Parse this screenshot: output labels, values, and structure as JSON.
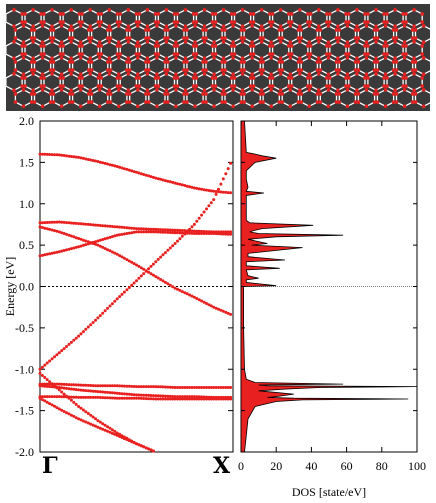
{
  "figure": {
    "structure_image": {
      "description_icon": "nanotube-structure-icon",
      "background_color": "#3a3a3a",
      "bond_color": "#ffffff",
      "atom_color": "#e8201f"
    }
  },
  "chart_data": [
    {
      "type": "scatter",
      "name": "band-structure",
      "ylabel": "Energy [eV]",
      "xlabel": "",
      "ylim": [
        -2.0,
        2.0
      ],
      "yticks": [
        "2.0",
        "1.5",
        "1.0",
        "0.5",
        "0.0",
        "-0.5",
        "-1.0",
        "-1.5",
        "-2.0"
      ],
      "xticks": [
        "Γ",
        "X"
      ],
      "fermi_level": 0.0,
      "marker_color": "#e8201f",
      "bands": [
        {
          "x": [
            0,
            0.1,
            0.2,
            0.3,
            0.4,
            0.5,
            0.6,
            0.7,
            0.8,
            0.9,
            1.0
          ],
          "y": [
            1.6,
            1.59,
            1.56,
            1.51,
            1.45,
            1.38,
            1.31,
            1.25,
            1.19,
            1.15,
            1.13
          ]
        },
        {
          "x": [
            0,
            0.1,
            0.2,
            0.3,
            0.4,
            0.5,
            0.6,
            0.7,
            0.8,
            0.9,
            1.0
          ],
          "y": [
            -1.0,
            -0.8,
            -0.6,
            -0.38,
            -0.15,
            0.07,
            0.3,
            0.52,
            0.75,
            1.05,
            1.55
          ]
        },
        {
          "x": [
            0,
            0.1,
            0.2,
            0.3,
            0.4,
            0.5,
            0.6,
            0.7,
            0.8,
            0.9,
            1.0
          ],
          "y": [
            0.77,
            0.78,
            0.76,
            0.74,
            0.72,
            0.7,
            0.69,
            0.68,
            0.67,
            0.66,
            0.66
          ]
        },
        {
          "x": [
            0,
            0.1,
            0.2,
            0.3,
            0.4,
            0.5,
            0.6,
            0.7,
            0.8,
            0.9,
            1.0
          ],
          "y": [
            0.72,
            0.66,
            0.58,
            0.5,
            0.39,
            0.26,
            0.12,
            -0.02,
            -0.13,
            -0.25,
            -0.35
          ]
        },
        {
          "x": [
            0,
            0.1,
            0.2,
            0.3,
            0.4,
            0.5,
            0.6,
            0.7,
            0.8,
            0.9,
            1.0
          ],
          "y": [
            0.37,
            0.42,
            0.48,
            0.55,
            0.62,
            0.66,
            0.66,
            0.65,
            0.64,
            0.64,
            0.63
          ]
        },
        {
          "x": [
            0,
            0.1,
            0.2,
            0.3,
            0.4,
            0.5,
            0.6,
            0.7,
            0.8,
            0.9,
            1.0
          ],
          "y": [
            -1.18,
            -1.18,
            -1.19,
            -1.2,
            -1.2,
            -1.21,
            -1.21,
            -1.22,
            -1.22,
            -1.22,
            -1.22
          ]
        },
        {
          "x": [
            0,
            0.1,
            0.2,
            0.3,
            0.4,
            0.5,
            0.6,
            0.7,
            0.8,
            0.9,
            1.0
          ],
          "y": [
            -1.2,
            -1.22,
            -1.25,
            -1.27,
            -1.29,
            -1.31,
            -1.32,
            -1.33,
            -1.33,
            -1.34,
            -1.34
          ]
        },
        {
          "x": [
            0,
            0.1,
            0.2,
            0.3,
            0.4,
            0.5,
            0.6,
            0.7,
            0.8,
            0.9,
            1.0
          ],
          "y": [
            -1.33,
            -1.33,
            -1.34,
            -1.34,
            -1.35,
            -1.35,
            -1.36,
            -1.36,
            -1.36,
            -1.36,
            -1.36
          ]
        },
        {
          "x": [
            0,
            0.1,
            0.2,
            0.3,
            0.4,
            0.5,
            0.6
          ],
          "y": [
            -1.05,
            -1.25,
            -1.45,
            -1.62,
            -1.77,
            -1.9,
            -2.0
          ]
        },
        {
          "x": [
            0,
            0.1,
            0.2,
            0.3,
            0.4,
            0.5,
            0.6
          ],
          "y": [
            -1.35,
            -1.48,
            -1.6,
            -1.7,
            -1.8,
            -1.9,
            -2.0
          ]
        }
      ]
    },
    {
      "type": "area",
      "name": "density-of-states",
      "xlabel": "DOS [state/eV]",
      "xlim": [
        0,
        100
      ],
      "ylim": [
        -2.0,
        2.0
      ],
      "xticks": [
        "0",
        "20",
        "40",
        "60",
        "80",
        "100"
      ],
      "fill_color": "#e8201f",
      "energy": [
        -2.0,
        -1.8,
        -1.6,
        -1.45,
        -1.39,
        -1.37,
        -1.36,
        -1.35,
        -1.34,
        -1.33,
        -1.3,
        -1.26,
        -1.24,
        -1.22,
        -1.21,
        -1.2,
        -1.19,
        -1.18,
        -1.16,
        -1.12,
        -1.0,
        -0.5,
        0.0,
        0.01,
        0.05,
        0.08,
        0.1,
        0.13,
        0.2,
        0.22,
        0.25,
        0.3,
        0.32,
        0.36,
        0.4,
        0.47,
        0.5,
        0.52,
        0.57,
        0.6,
        0.62,
        0.64,
        0.66,
        0.68,
        0.7,
        0.74,
        0.77,
        0.8,
        1.0,
        1.1,
        1.13,
        1.15,
        1.2,
        1.3,
        1.4,
        1.5,
        1.55,
        1.58,
        1.6,
        1.62,
        2.0
      ],
      "dos": [
        2,
        3,
        4,
        8,
        20,
        35,
        95,
        30,
        15,
        20,
        30,
        10,
        25,
        45,
        100,
        15,
        10,
        58,
        8,
        3,
        2,
        1.5,
        1.5,
        20,
        3,
        3,
        10,
        4,
        3,
        22,
        3,
        3,
        25,
        4,
        4,
        35,
        6,
        15,
        4,
        20,
        58,
        10,
        5,
        8,
        12,
        41,
        5,
        3,
        3,
        3,
        13,
        3,
        4,
        3,
        3,
        8,
        20,
        12,
        8,
        3,
        2
      ]
    }
  ]
}
